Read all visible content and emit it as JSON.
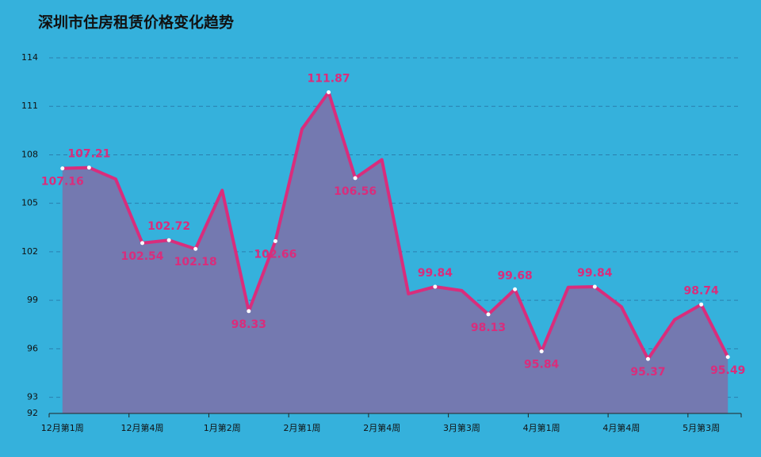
{
  "chart_data": {
    "type": "area_line",
    "title": "深圳市住房租赁价格变化趋势",
    "categories": [
      "12月第1周",
      null,
      null,
      "12月第4周",
      null,
      null,
      "1月第2周",
      null,
      null,
      "2月第1周",
      null,
      null,
      "2月第4周",
      null,
      null,
      "3月第3周",
      null,
      null,
      "4月第1周",
      null,
      null,
      "4月第4周",
      null,
      null,
      "5月第3周",
      null
    ],
    "series": [
      {
        "name": null,
        "color": "#d92d7c",
        "fill": "#7479b0",
        "values": [
          107.16,
          107.21,
          106.5,
          102.54,
          102.72,
          102.18,
          105.8,
          98.33,
          102.66,
          109.6,
          111.87,
          106.56,
          107.7,
          99.4,
          99.84,
          99.6,
          98.13,
          99.68,
          95.84,
          99.8,
          99.84,
          98.6,
          95.37,
          97.8,
          98.74,
          95.49
        ],
        "value_labels": [
          "107.16",
          "107.21",
          null,
          "102.54",
          "102.72",
          "102.18",
          null,
          "98.33",
          "102.66",
          null,
          "111.87",
          "106.56",
          null,
          null,
          "99.84",
          null,
          "98.13",
          "99.68",
          "95.84",
          null,
          "99.84",
          null,
          "95.37",
          null,
          "98.74",
          "95.49"
        ]
      }
    ],
    "ylim": [
      92,
      114
    ],
    "yticks": [
      92,
      93,
      96,
      99,
      102,
      105,
      108,
      111,
      114
    ],
    "grid": true
  }
}
